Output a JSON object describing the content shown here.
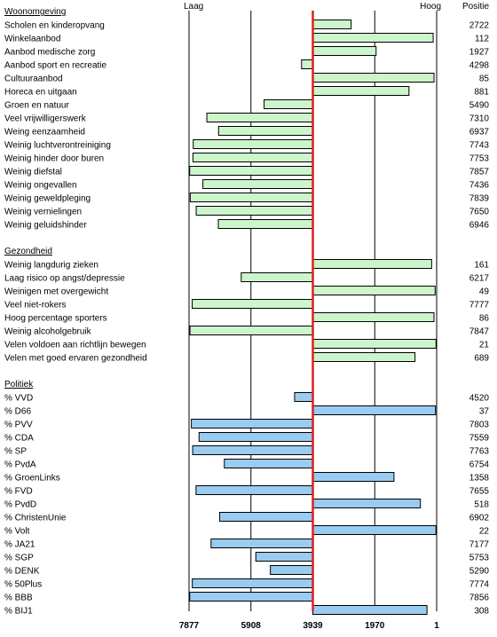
{
  "chart_data": {
    "type": "bar",
    "orientation": "horizontal",
    "header": {
      "left": "Laag",
      "right": "Hoog",
      "position_label": "Positie"
    },
    "x_range": [
      7877,
      1
    ],
    "x_axis_reversed": true,
    "x_ticks": [
      "7877",
      "5908",
      "3939",
      "1970",
      "1"
    ],
    "reference_value": 3939,
    "reference_line_color": "#e02020",
    "grid": "vertical lines",
    "colors": {
      "woon": "#ccf5cc",
      "gez": "#ccf5cc",
      "pol": "#99ccf0",
      "ref": "#e02020"
    },
    "groups": [
      {
        "title": "Woonomgeving",
        "color_key": "woon",
        "items": [
          {
            "label": "Scholen en kinderopvang",
            "value": 2722
          },
          {
            "label": "Winkelaanbod",
            "value": 112
          },
          {
            "label": "Aanbod medische zorg",
            "value": 1927
          },
          {
            "label": "Aanbod sport en recreatie",
            "value": 4298
          },
          {
            "label": "Cultuuraanbod",
            "value": 85
          },
          {
            "label": "Horeca en uitgaan",
            "value": 881
          },
          {
            "label": "Groen en natuur",
            "value": 5490
          },
          {
            "label": "Veel vrijwilligerswerk",
            "value": 7310
          },
          {
            "label": "Weing eenzaamheid",
            "value": 6937
          },
          {
            "label": "Weinig luchtverontreiniging",
            "value": 7743
          },
          {
            "label": "Weinig hinder door buren",
            "value": 7753
          },
          {
            "label": "Weinig diefstal",
            "value": 7857
          },
          {
            "label": "Weinig ongevallen",
            "value": 7436
          },
          {
            "label": "Weinig geweldpleging",
            "value": 7839
          },
          {
            "label": "Weinig vernielingen",
            "value": 7650
          },
          {
            "label": "Weinig geluidshinder",
            "value": 6946
          }
        ]
      },
      {
        "title": "Gezondheid",
        "color_key": "gez",
        "items": [
          {
            "label": "Weinig langdurig zieken",
            "value": 161
          },
          {
            "label": "Laag risico op angst/depressie",
            "value": 6217
          },
          {
            "label": "Weinigen met overgewicht",
            "value": 49
          },
          {
            "label": "Veel niet-rokers",
            "value": 7777
          },
          {
            "label": "Hoog percentage sporters",
            "value": 86
          },
          {
            "label": "Weinig alcoholgebruik",
            "value": 7847
          },
          {
            "label": "Velen voldoen aan richtlijn bewegen",
            "value": 21
          },
          {
            "label": "Velen met goed ervaren gezondheid",
            "value": 689
          }
        ]
      },
      {
        "title": "Politiek",
        "color_key": "pol",
        "items": [
          {
            "label": "% VVD",
            "value": 4520
          },
          {
            "label": "% D66",
            "value": 37
          },
          {
            "label": "% PVV",
            "value": 7803
          },
          {
            "label": "% CDA",
            "value": 7559
          },
          {
            "label": "% SP",
            "value": 7763
          },
          {
            "label": "% PvdA",
            "value": 6754
          },
          {
            "label": "% GroenLinks",
            "value": 1358
          },
          {
            "label": "% FVD",
            "value": 7655
          },
          {
            "label": "% PvdD",
            "value": 518
          },
          {
            "label": "% ChristenUnie",
            "value": 6902
          },
          {
            "label": "% Volt",
            "value": 22
          },
          {
            "label": "% JA21",
            "value": 7177
          },
          {
            "label": "% SGP",
            "value": 5753
          },
          {
            "label": "% DENK",
            "value": 5290
          },
          {
            "label": "% 50Plus",
            "value": 7774
          },
          {
            "label": "% BBB",
            "value": 7856
          },
          {
            "label": "% BIJ1",
            "value": 308
          }
        ]
      }
    ]
  }
}
